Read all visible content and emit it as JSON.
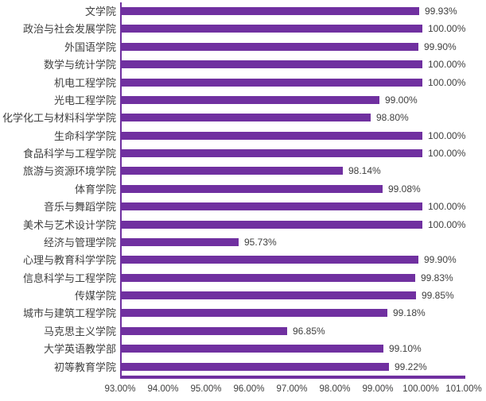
{
  "chart_data": {
    "type": "bar",
    "orientation": "horizontal",
    "title": "",
    "xlabel": "",
    "ylabel": "",
    "grid": false,
    "legend_position": "none",
    "xlim": [
      93,
      101
    ],
    "x_tick_labels": [
      "93.00%",
      "94.00%",
      "95.00%",
      "96.00%",
      "97.00%",
      "98.00%",
      "99.00%",
      "100.00%",
      "101.00%"
    ],
    "categories": [
      "文学院",
      "政治与社会发展学院",
      "外国语学院",
      "数学与统计学院",
      "机电工程学院",
      "光电工程学院",
      "化学化工与材料科学学院",
      "生命科学学院",
      "食品科学与工程学院",
      "旅游与资源环境学院",
      "体育学院",
      "音乐与舞蹈学院",
      "美术与艺术设计学院",
      "经济与管理学院",
      "心理与教育科学学院",
      "信息科学与工程学院",
      "传媒学院",
      "城市与建筑工程学院",
      "马克思主义学院",
      "大学英语教学部",
      "初等教育学院"
    ],
    "values": [
      99.93,
      100.0,
      99.9,
      100.0,
      100.0,
      99.0,
      98.8,
      100.0,
      100.0,
      98.14,
      99.08,
      100.0,
      100.0,
      95.73,
      99.9,
      99.83,
      99.85,
      99.18,
      96.85,
      99.1,
      99.22
    ],
    "data_labels": [
      "99.93%",
      "100.00%",
      "99.90%",
      "100.00%",
      "100.00%",
      "99.00%",
      "98.80%",
      "100.00%",
      "100.00%",
      "98.14%",
      "99.08%",
      "100.00%",
      "100.00%",
      "95.73%",
      "99.90%",
      "99.83%",
      "99.85%",
      "99.18%",
      "96.85%",
      "99.10%",
      "99.22%"
    ],
    "colors": {
      "bar": "#7030A0",
      "axis_line": "#7030A0",
      "text": "#404040",
      "background": "#FFFFFF"
    }
  }
}
